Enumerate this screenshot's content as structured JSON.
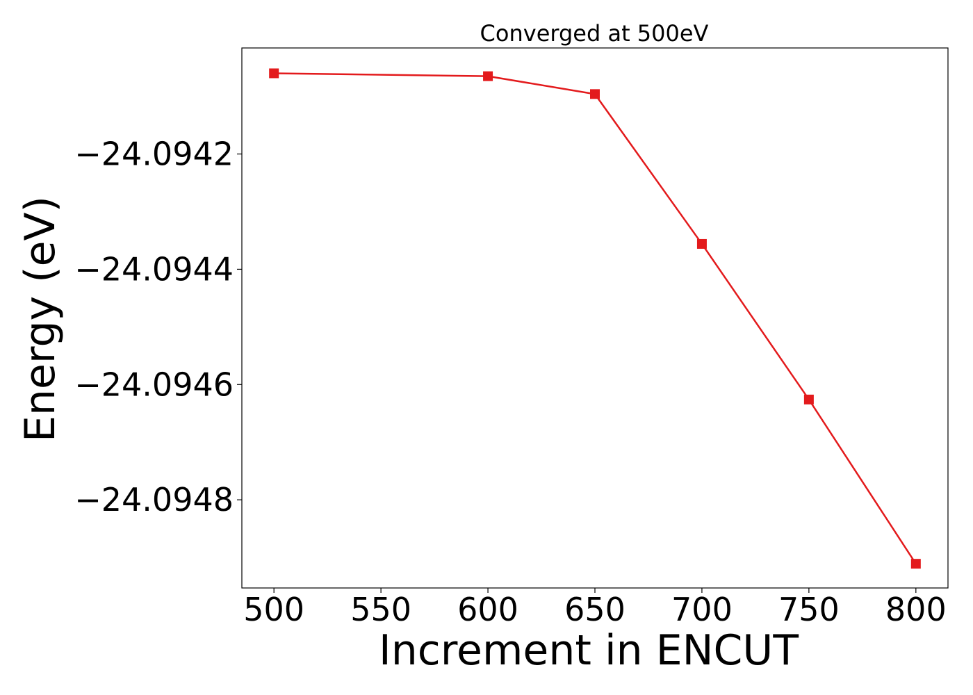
{
  "chart_data": {
    "type": "line",
    "title": "Converged at 500eV",
    "xlabel": "Increment in ENCUT",
    "ylabel": "Energy (eV)",
    "x": [
      500,
      600,
      650,
      700,
      750,
      800
    ],
    "series": [
      {
        "values": [
          -24.09406,
          -24.094065,
          -24.094096,
          -24.094356,
          -24.094626,
          -24.094911
        ],
        "color": "#e31a1c",
        "marker": "square"
      }
    ],
    "xlim": [
      485,
      815
    ],
    "ylim": [
      -24.094953,
      -24.094016
    ],
    "xticks": [
      500,
      550,
      600,
      650,
      700,
      750,
      800
    ],
    "xtick_labels": [
      "500",
      "550",
      "600",
      "650",
      "700",
      "750",
      "800"
    ],
    "yticks": [
      -24.0942,
      -24.0944,
      -24.0946,
      -24.0948
    ],
    "ytick_labels": [
      "−24.0942",
      "−24.0944",
      "−24.0946",
      "−24.0948"
    ],
    "grid": false,
    "legend": "none"
  }
}
